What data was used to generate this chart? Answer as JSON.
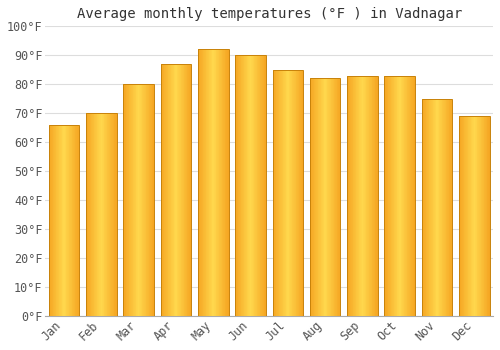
{
  "title": "Average monthly temperatures (°F ) in Vadnagar",
  "months": [
    "Jan",
    "Feb",
    "Mar",
    "Apr",
    "May",
    "Jun",
    "Jul",
    "Aug",
    "Sep",
    "Oct",
    "Nov",
    "Dec"
  ],
  "values": [
    66,
    70,
    80,
    87,
    92,
    90,
    85,
    82,
    83,
    83,
    75,
    69
  ],
  "bar_color_left": "#F5A623",
  "bar_color_center": "#FFD84D",
  "bar_color_right": "#F5A623",
  "bar_edge_color": "#C8820A",
  "background_color": "#FFFFFF",
  "grid_color": "#DDDDDD",
  "ylim": [
    0,
    100
  ],
  "yticks": [
    0,
    10,
    20,
    30,
    40,
    50,
    60,
    70,
    80,
    90,
    100
  ],
  "ytick_labels": [
    "0°F",
    "10°F",
    "20°F",
    "30°F",
    "40°F",
    "50°F",
    "60°F",
    "70°F",
    "80°F",
    "90°F",
    "100°F"
  ],
  "title_fontsize": 10,
  "tick_fontsize": 8.5,
  "figsize": [
    5.0,
    3.5
  ],
  "dpi": 100,
  "bar_width": 0.82
}
